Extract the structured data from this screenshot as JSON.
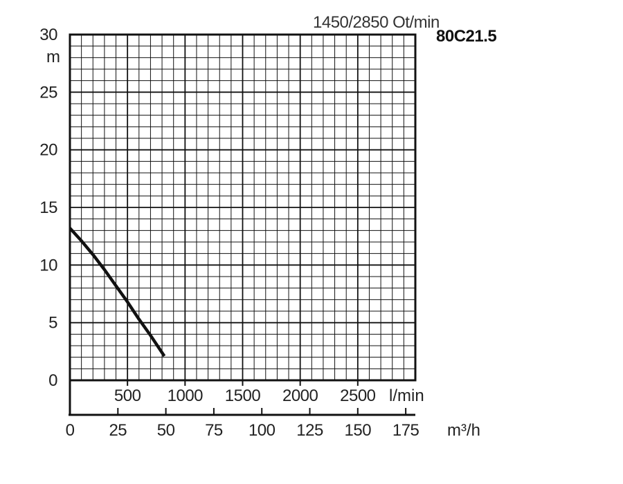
{
  "chart_data": {
    "type": "line",
    "speed_label": "1450/2850 Ot/min",
    "model_label": "80C21.5",
    "y_unit": "m",
    "y_ticks": [
      "30",
      "25",
      "20",
      "15",
      "10",
      "5",
      "0"
    ],
    "ylim": [
      0,
      30
    ],
    "xlim": [
      0,
      3000
    ],
    "flow_lmin_unit": "l/min",
    "flow_lmin_ticks": [
      "500",
      "1000",
      "1500",
      "2000",
      "2500"
    ],
    "flow_m3h_unit": "m³/h",
    "flow_m3h_ticks": [
      "0",
      "25",
      "50",
      "75",
      "100",
      "125",
      "150",
      "175"
    ],
    "grid": true,
    "series": [
      {
        "x": [
          0,
          100,
          200,
          300,
          400,
          500,
          600,
          700,
          820
        ],
        "y": [
          13.2,
          12.1,
          10.9,
          9.6,
          8.2,
          6.8,
          5.3,
          3.9,
          2.1
        ]
      }
    ],
    "colors": {
      "curve": "#111111",
      "grid": "#111111"
    }
  }
}
